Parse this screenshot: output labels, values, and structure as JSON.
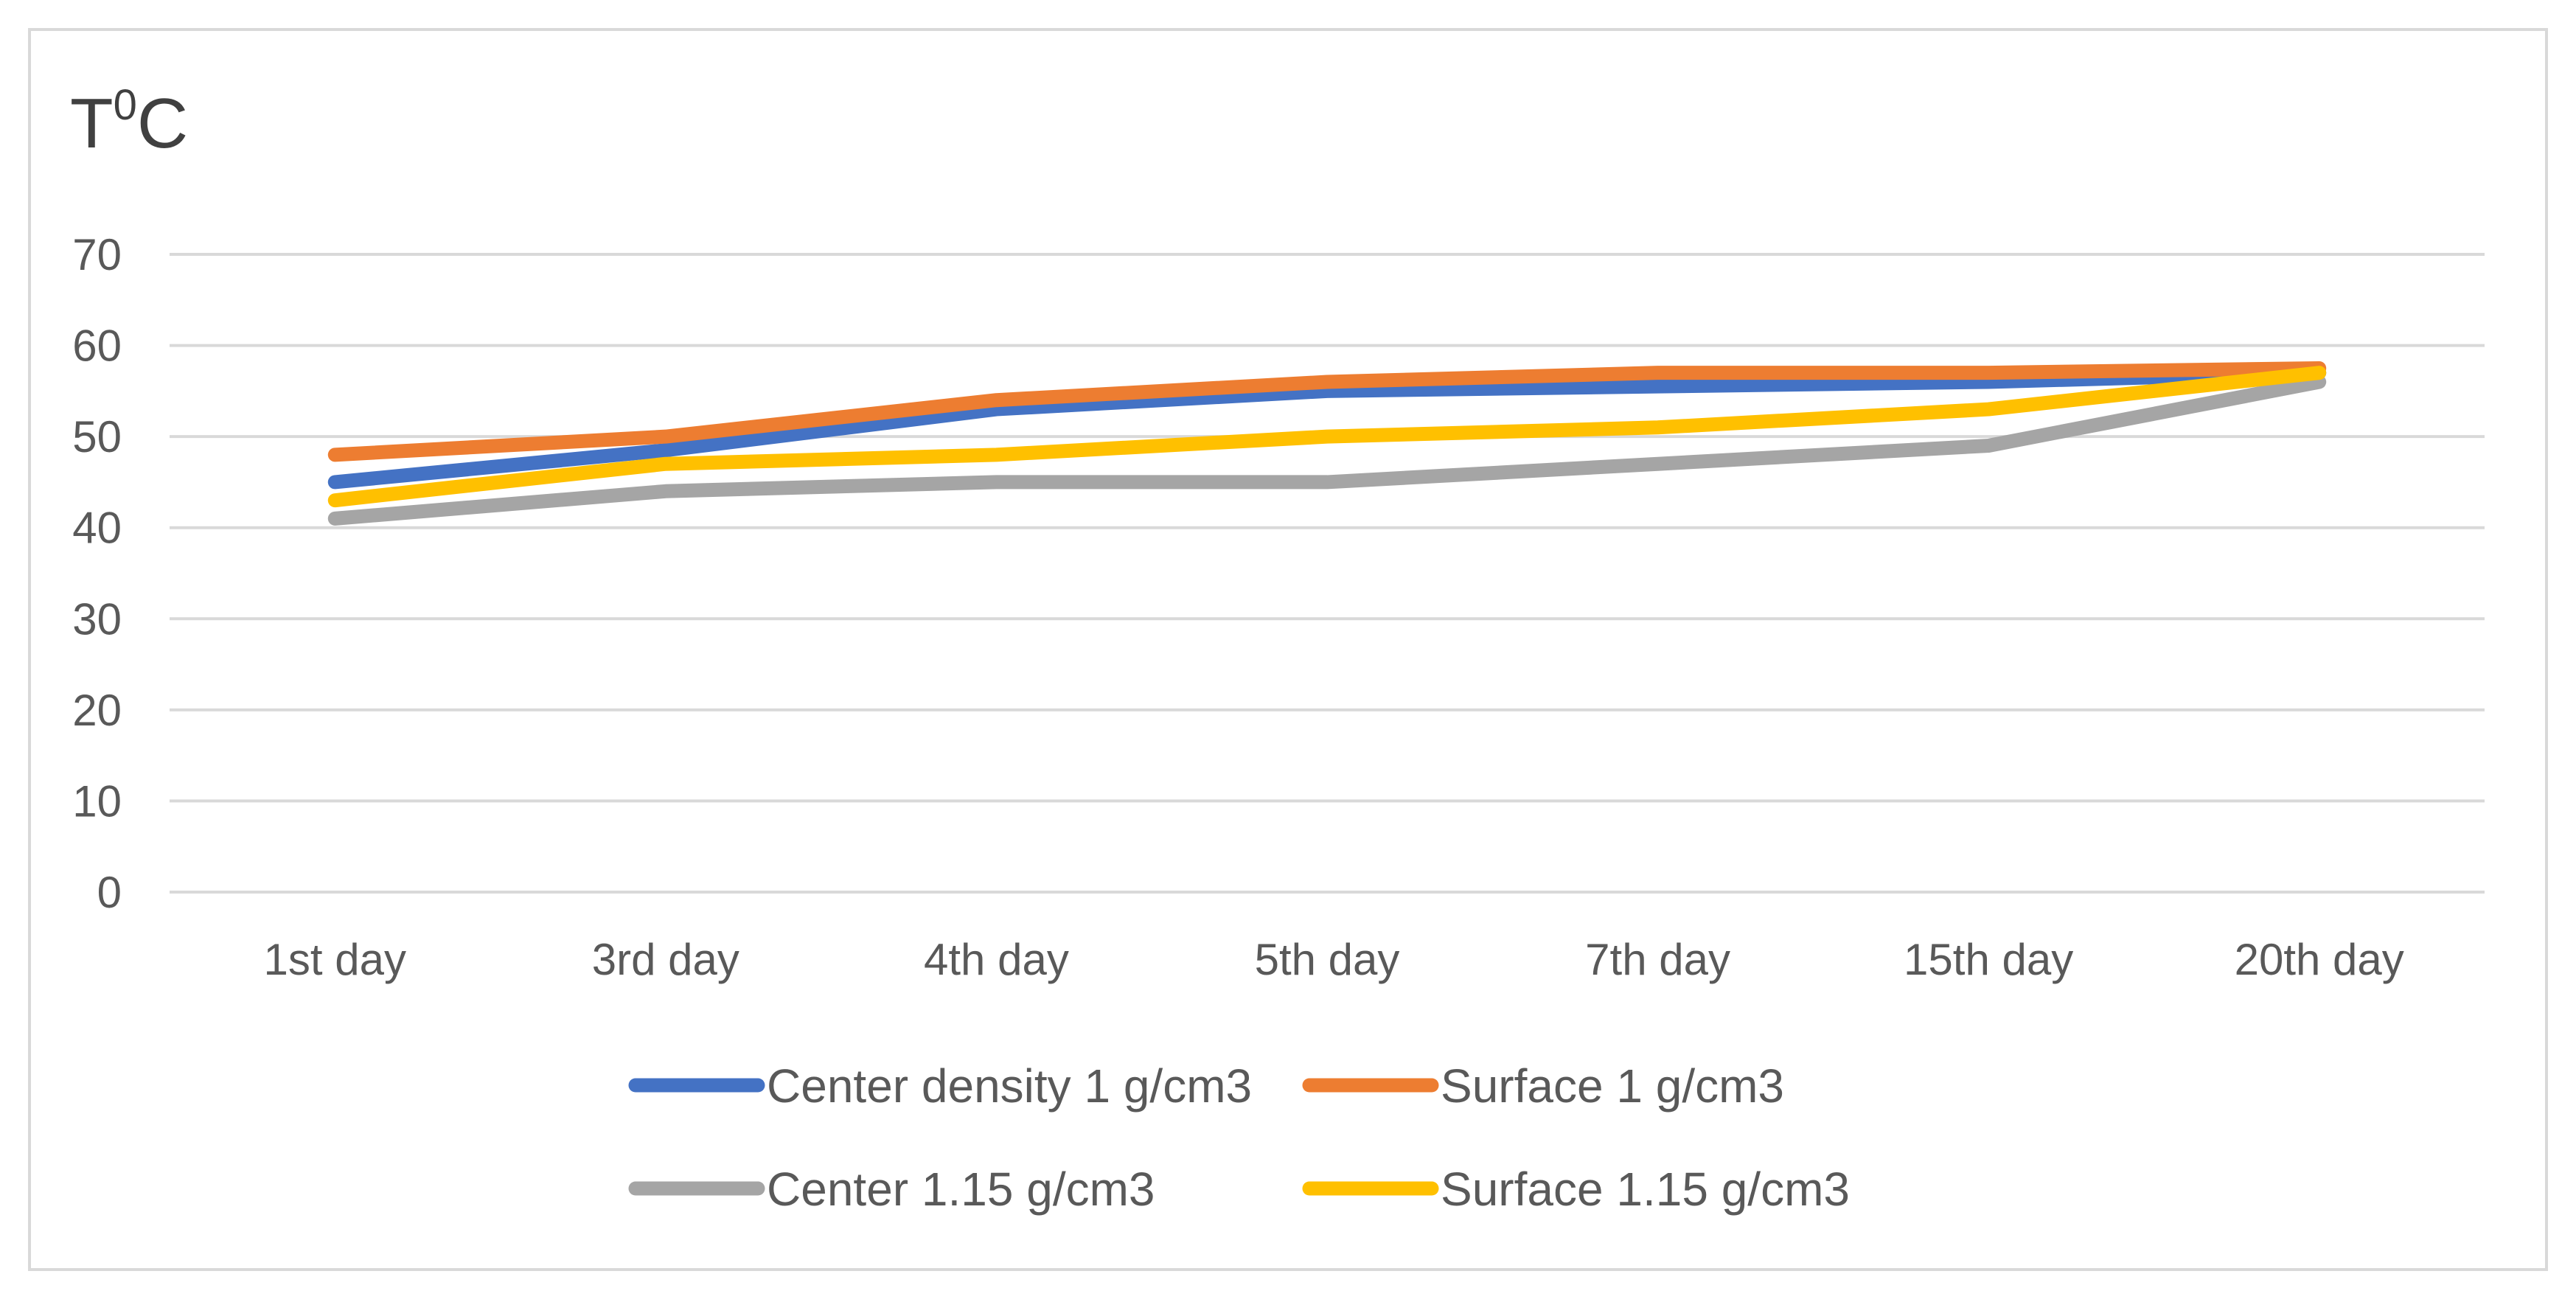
{
  "chart_data": {
    "type": "line",
    "title": "T",
    "title_superscript": "0",
    "title_suffix": "C",
    "xlabel": "",
    "ylabel": "",
    "categories": [
      "1st day",
      "3rd day",
      "4th day",
      "5th day",
      "7th day",
      "15th day",
      "20th day"
    ],
    "ylim": [
      0,
      70
    ],
    "yticks": [
      0,
      10,
      20,
      30,
      40,
      50,
      60,
      70
    ],
    "grid": true,
    "legend_position": "bottom",
    "series": [
      {
        "name": "Center density 1 g/cm3",
        "color": "#4472c4",
        "values": [
          45,
          48.5,
          53,
          55,
          55.5,
          56,
          57
        ]
      },
      {
        "name": "Surface 1 g/cm3",
        "color": "#ed7d31",
        "values": [
          48,
          50,
          54,
          56,
          57,
          57,
          57.5
        ]
      },
      {
        "name": "Center 1.15 g/cm3",
        "color": "#a5a5a5",
        "values": [
          41,
          44,
          45,
          45,
          47,
          49,
          56
        ]
      },
      {
        "name": "Surface 1.15 g/cm3",
        "color": "#ffc000",
        "values": [
          43,
          47,
          48,
          50,
          51,
          53,
          57
        ]
      }
    ]
  }
}
